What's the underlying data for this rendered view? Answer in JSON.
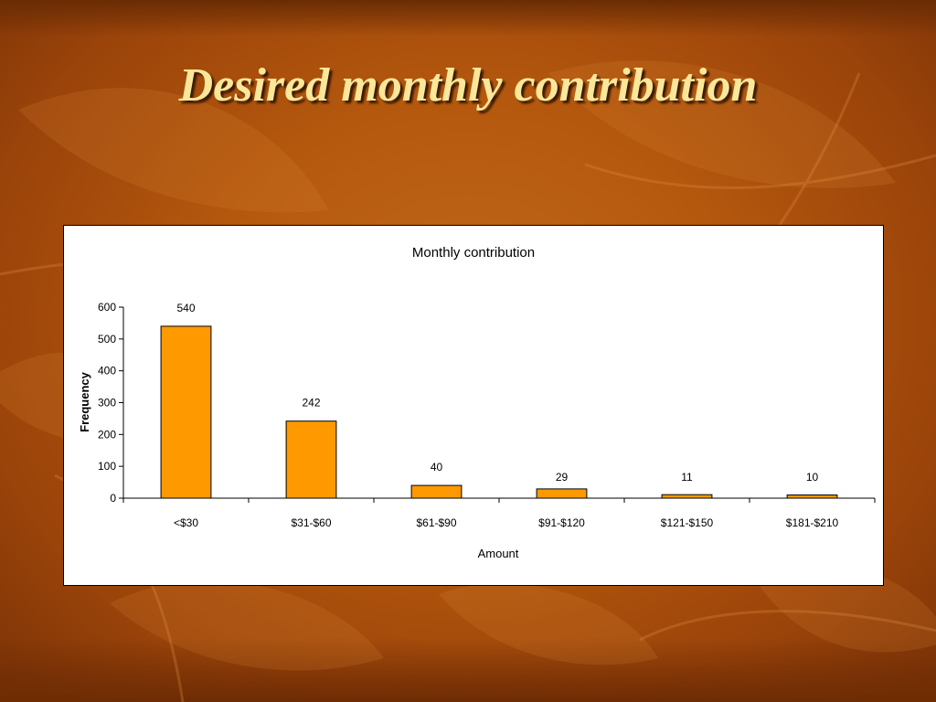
{
  "slide": {
    "title": "Desired monthly contribution"
  },
  "colors": {
    "bar_fill": "#ff9900",
    "bar_stroke": "#000000",
    "title_text": "#fbe79a",
    "background": "#b4580e"
  },
  "chart_data": {
    "type": "bar",
    "title": "Monthly contribution",
    "xlabel": "Amount",
    "ylabel": "Frequency",
    "categories": [
      "<$30",
      "$31-$60",
      "$61-$90",
      "$91-$120",
      "$121-$150",
      "$181-$210"
    ],
    "values": [
      540,
      242,
      40,
      29,
      11,
      10
    ],
    "data_labels": [
      "540",
      "242",
      "40",
      "29",
      "11",
      "10"
    ],
    "ylim": [
      0,
      600
    ],
    "yticks": [
      0,
      100,
      200,
      300,
      400,
      500,
      600
    ],
    "grid": false,
    "legend": "none"
  }
}
